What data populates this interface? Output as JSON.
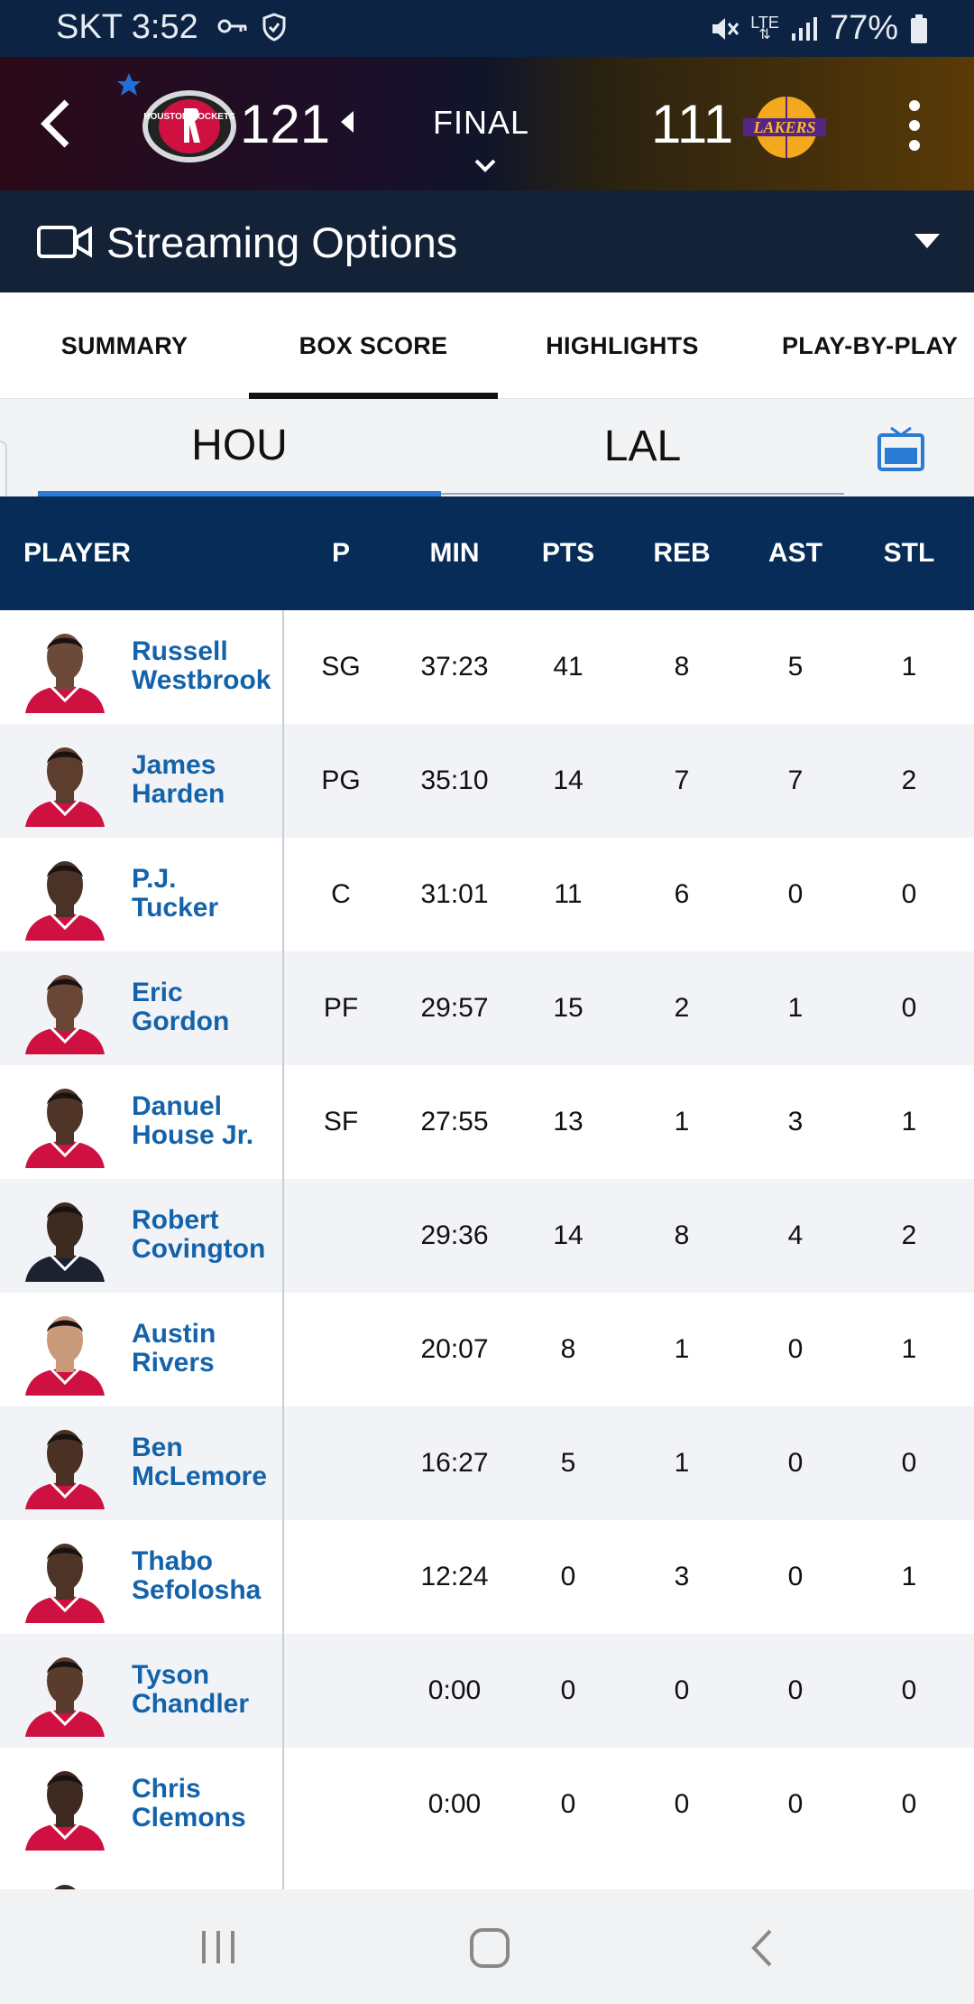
{
  "status_bar": {
    "carrier_time": "SKT 3:52",
    "network": "LTE",
    "battery": "77%"
  },
  "game": {
    "home": {
      "team": "Houston Rockets",
      "score": "121",
      "logo_text": "HOUSTON ROCKETS"
    },
    "away": {
      "team": "Los Angeles Lakers",
      "score": "111",
      "logo_text": "LAKERS"
    },
    "status": "FINAL",
    "colors": {
      "rockets_red": "#ce1141",
      "lakers_purple": "#552583",
      "lakers_gold": "#fdb927"
    }
  },
  "streaming": {
    "label": "Streaming Options"
  },
  "tabs": [
    "SUMMARY",
    "BOX SCORE",
    "HIGHLIGHTS",
    "PLAY-BY-PLAY"
  ],
  "active_tab": "BOX SCORE",
  "team_toggle": {
    "teams": [
      "HOU",
      "LAL"
    ],
    "active": "HOU",
    "accent": "#2a7bd4"
  },
  "table": {
    "columns": [
      "PLAYER",
      "P",
      "MIN",
      "PTS",
      "REB",
      "AST",
      "STL"
    ],
    "rows": [
      {
        "first": "Russell",
        "last": "Westbrook",
        "pos": "SG",
        "min": "37:23",
        "pts": "41",
        "reb": "8",
        "ast": "5",
        "stl": "1"
      },
      {
        "first": "James",
        "last": "Harden",
        "pos": "PG",
        "min": "35:10",
        "pts": "14",
        "reb": "7",
        "ast": "7",
        "stl": "2"
      },
      {
        "first": "P.J.",
        "last": "Tucker",
        "pos": "C",
        "min": "31:01",
        "pts": "11",
        "reb": "6",
        "ast": "0",
        "stl": "0"
      },
      {
        "first": "Eric",
        "last": "Gordon",
        "pos": "PF",
        "min": "29:57",
        "pts": "15",
        "reb": "2",
        "ast": "1",
        "stl": "0"
      },
      {
        "first": "Danuel",
        "last": "House Jr.",
        "pos": "SF",
        "min": "27:55",
        "pts": "13",
        "reb": "1",
        "ast": "3",
        "stl": "1"
      },
      {
        "first": "Robert",
        "last": "Covington",
        "pos": "",
        "min": "29:36",
        "pts": "14",
        "reb": "8",
        "ast": "4",
        "stl": "2"
      },
      {
        "first": "Austin",
        "last": "Rivers",
        "pos": "",
        "min": "20:07",
        "pts": "8",
        "reb": "1",
        "ast": "0",
        "stl": "1"
      },
      {
        "first": "Ben",
        "last": "McLemore",
        "pos": "",
        "min": "16:27",
        "pts": "5",
        "reb": "1",
        "ast": "0",
        "stl": "0"
      },
      {
        "first": "Thabo",
        "last": "Sefolosha",
        "pos": "",
        "min": "12:24",
        "pts": "0",
        "reb": "3",
        "ast": "0",
        "stl": "1"
      },
      {
        "first": "Tyson",
        "last": "Chandler",
        "pos": "",
        "min": "0:00",
        "pts": "0",
        "reb": "0",
        "ast": "0",
        "stl": "0"
      },
      {
        "first": "Chris",
        "last": "Clemons",
        "pos": "",
        "min": "0:00",
        "pts": "0",
        "reb": "0",
        "ast": "0",
        "stl": "0"
      }
    ]
  },
  "nav_bar": {
    "buttons": [
      "recent-apps",
      "home",
      "back"
    ]
  }
}
